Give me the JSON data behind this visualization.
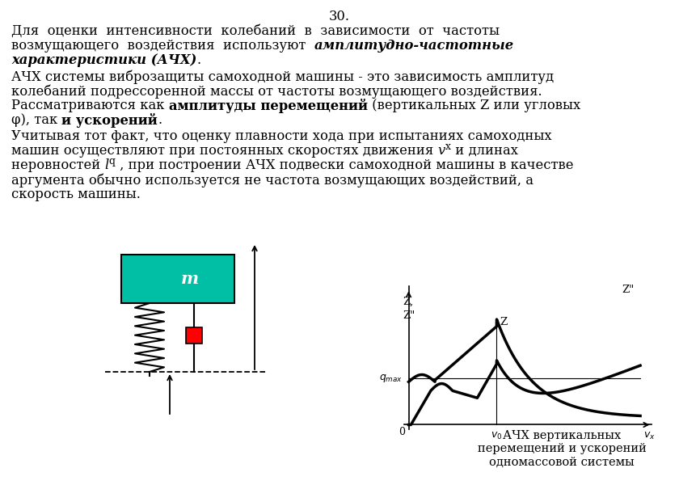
{
  "title_number": "30.",
  "page_bg": "#ffffff",
  "para1_lines": [
    "Для  оценки  интенсивности  колебаний  в  зависимости  от  частоты",
    "возмущающего  воздействия  используют  ",
    "характеристики (АЧХ)."
  ],
  "para1_bold_end": "амплитудно-частотные",
  "para2_lines": [
    "АЧХ системы виброзащиты самоходной машины - это зависимость амплитуд",
    "колебаний подрессоренной массы от частоты возмущающего воздействия.",
    "Рассматриваются как  амплитуды перемещений  (вертикальных Z или угловых",
    "φ), так  и ускорений."
  ],
  "para3_lines": [
    "Учитывая тот факт, что оценку плавности хода при испытаниях самоходных",
    "машин осуществляют при постоянных скоростях движения  и длинах",
    "неровностей  , при построении АЧХ подвески самоходной машины в качестве",
    "аргумента обычно используется не частота возмущающих воздействий, а",
    "скорость машины."
  ],
  "graph_caption": "АЧХ вертикальных\nперемещений и ускорений\nодномассовой системы",
  "mass_color": "#00BFA5",
  "damper_color": "#cc0000"
}
